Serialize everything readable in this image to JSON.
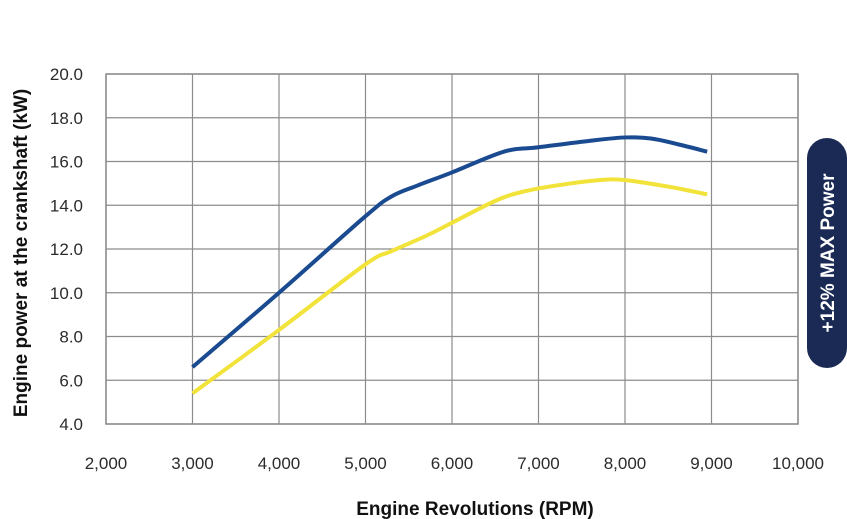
{
  "chart_data": {
    "type": "line",
    "xlabel": "Engine Revolutions (RPM)",
    "ylabel": "Engine power at the crankshaft (kW)",
    "xlim": [
      2000,
      10000
    ],
    "ylim": [
      4.0,
      20.0
    ],
    "x_ticks": [
      "2,000",
      "3,000",
      "4,000",
      "5,000",
      "6,000",
      "7,000",
      "8,000",
      "9,000",
      "10,000"
    ],
    "y_ticks": [
      "4.0",
      "6.0",
      "8.0",
      "10.0",
      "12.0",
      "14.0",
      "16.0",
      "18.0",
      "20.0"
    ],
    "grid": true,
    "series": [
      {
        "color": "#1a4a8f",
        "points": [
          [
            3000,
            6.6
          ],
          [
            4000,
            10.0
          ],
          [
            5000,
            13.5
          ],
          [
            5300,
            14.4
          ],
          [
            5600,
            14.9
          ],
          [
            6000,
            15.5
          ],
          [
            6600,
            16.45
          ],
          [
            7000,
            16.65
          ],
          [
            7600,
            16.95
          ],
          [
            8000,
            17.1
          ],
          [
            8300,
            17.05
          ],
          [
            8600,
            16.8
          ],
          [
            8950,
            16.45
          ]
        ]
      },
      {
        "color": "#f2e33a",
        "points": [
          [
            3000,
            5.4
          ],
          [
            4000,
            8.3
          ],
          [
            5000,
            11.3
          ],
          [
            5300,
            11.9
          ],
          [
            5700,
            12.6
          ],
          [
            6000,
            13.2
          ],
          [
            6500,
            14.2
          ],
          [
            6800,
            14.6
          ],
          [
            7200,
            14.9
          ],
          [
            7700,
            15.15
          ],
          [
            8000,
            15.15
          ],
          [
            8500,
            14.85
          ],
          [
            8950,
            14.5
          ]
        ]
      }
    ],
    "annotation": {
      "text": "+12% MAX Power",
      "background": "#1b2a55",
      "text_color": "#ffffff"
    },
    "plot_border_color": "#8c8c8c",
    "grid_color": "#8c8c8c"
  }
}
